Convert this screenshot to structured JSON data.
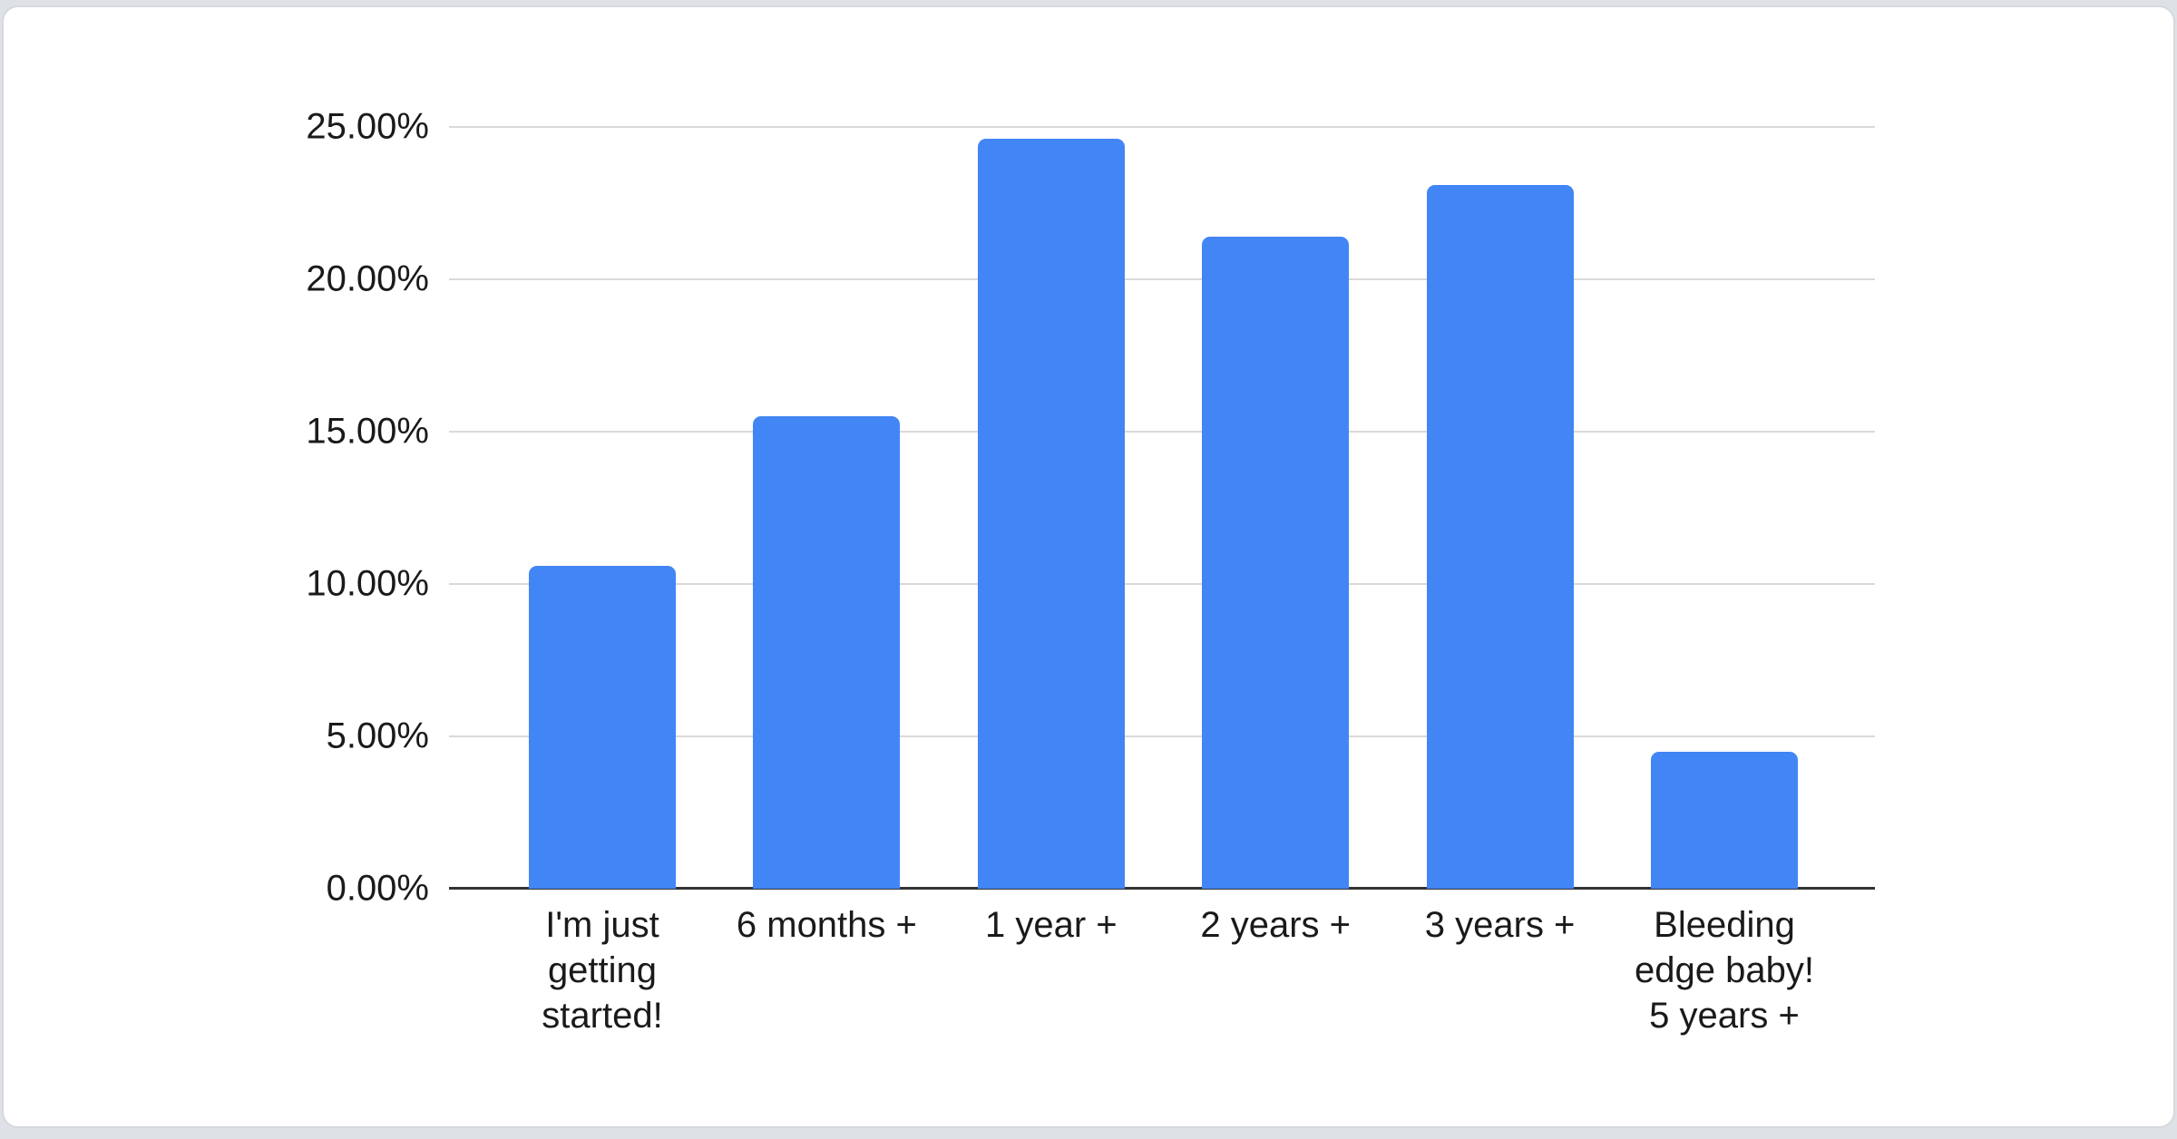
{
  "page": {
    "background_color": "#dee1e5"
  },
  "card": {
    "background_color": "#ffffff",
    "border_color": "#d5d8dc"
  },
  "chart_data": {
    "type": "bar",
    "title": "",
    "xlabel": "",
    "ylabel": "",
    "categories": [
      "I'm just\ngetting\nstarted!",
      "6 months +",
      "1 year +",
      "2 years +",
      "3 years +",
      "Bleeding\nedge baby!\n5 years +"
    ],
    "values": [
      10.6,
      15.5,
      24.6,
      21.4,
      23.1,
      4.5
    ],
    "y_ticks": [
      0,
      5,
      10,
      15,
      20,
      25
    ],
    "y_tick_labels": [
      "0.00%",
      "5.00%",
      "10.00%",
      "15.00%",
      "20.00%",
      "25.00%"
    ],
    "ylim": [
      0,
      25
    ],
    "grid": true,
    "legend": "none",
    "colors": {
      "bar": "#4285f4",
      "gridline": "#d9d9d9",
      "axis_line": "#333333",
      "label": "#1a1a1a"
    }
  }
}
